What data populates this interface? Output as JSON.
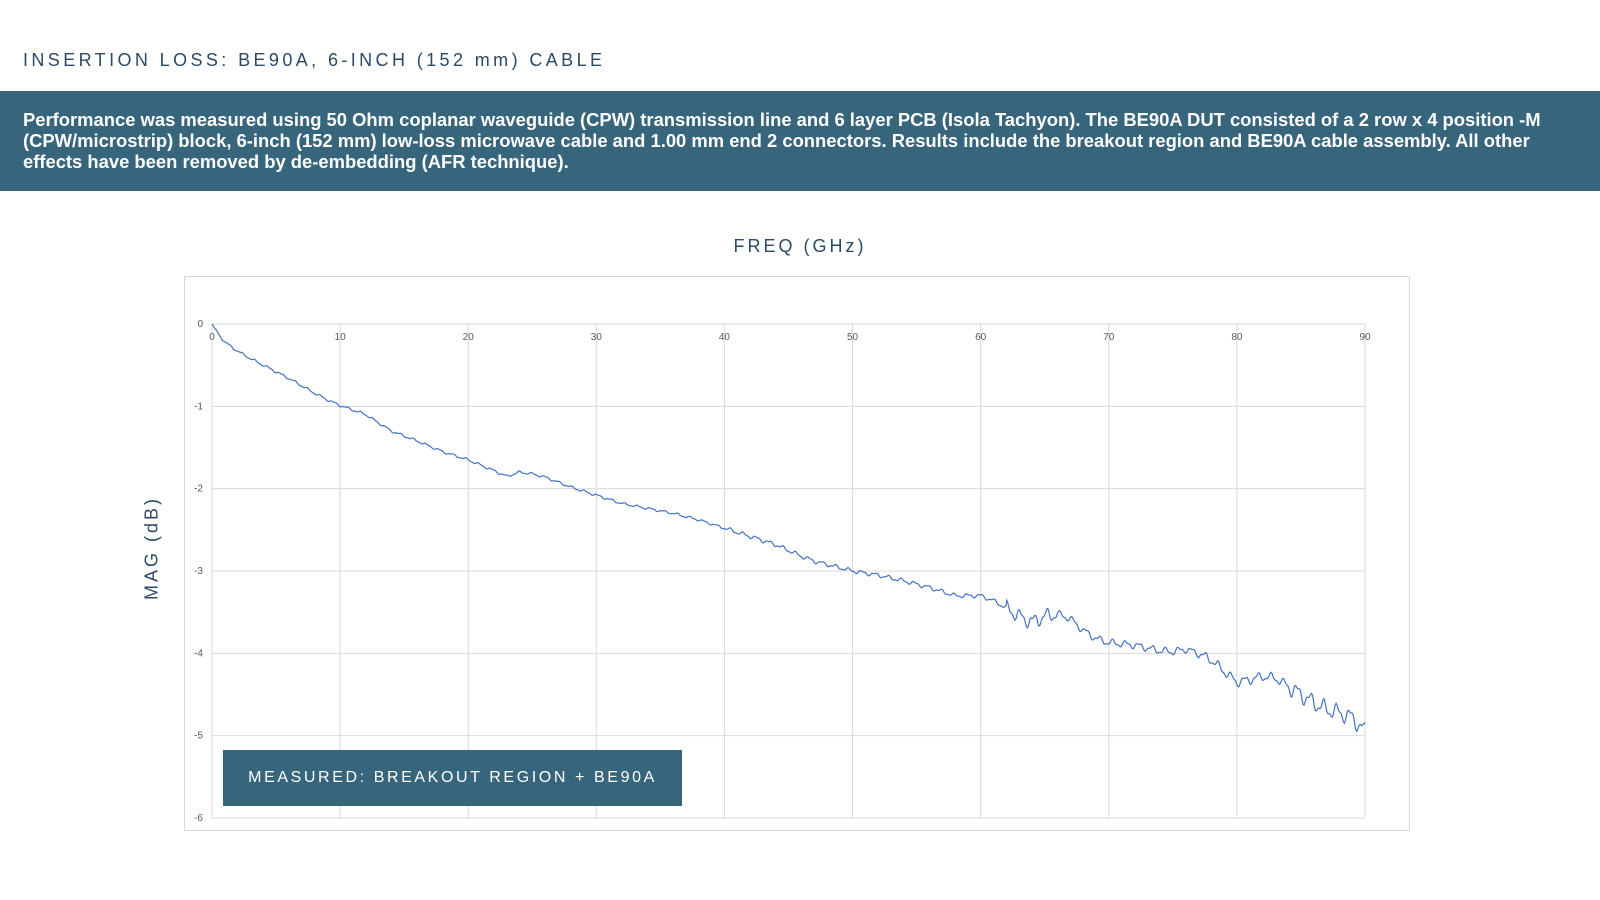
{
  "page": {
    "title": "INSERTION LOSS: BE90A, 6-INCH (152 mm) CABLE",
    "description": "Performance was measured using 50 Ohm coplanar waveguide (CPW) transmission line and 6 layer PCB (Isola Tachyon). The BE90A DUT consisted of a 2 row x 4 position -M (CPW/microstrip) block, 6-inch (152 mm) low-loss microwave cable and 1.00 mm end 2 connectors. Results include the breakout region and BE90A cable assembly. All other effects have been removed by de-embedding (AFR technique)."
  },
  "colors": {
    "band": "#36657c",
    "title_text": "#2b4a66",
    "series": "#4472c4",
    "grid": "#d9d9d9"
  },
  "chart_data": {
    "type": "line",
    "title": "",
    "xlabel": "FREQ (GHz)",
    "ylabel": "MAG (dB)",
    "xlim": [
      0,
      90
    ],
    "ylim": [
      -6,
      0
    ],
    "x_ticks": [
      "0",
      "10",
      "20",
      "30",
      "40",
      "50",
      "60",
      "70",
      "80",
      "90"
    ],
    "y_ticks": [
      "0",
      "-1",
      "-2",
      "-3",
      "-4",
      "-5",
      "-6"
    ],
    "x_axis_position": "top",
    "grid": true,
    "legend": "MEASURED: BREAKOUT REGION + BE90A",
    "series": [
      {
        "name": "MEASURED: BREAKOUT REGION + BE90A",
        "x": [
          0,
          0.5,
          1,
          2,
          3,
          4,
          5,
          6,
          7,
          8,
          9,
          10,
          12,
          14,
          16,
          18,
          20,
          22,
          23,
          24,
          25,
          26,
          27,
          28,
          30,
          32,
          34,
          36,
          38,
          40,
          42,
          44,
          46,
          47,
          48,
          50,
          52,
          54,
          56,
          58,
          60,
          61,
          62,
          63,
          64,
          65,
          66,
          67,
          68,
          69,
          70,
          72,
          74,
          75,
          76,
          77,
          78,
          79,
          80,
          81,
          82,
          83,
          84,
          85,
          86,
          87,
          88,
          89,
          90
        ],
        "y": [
          0,
          -0.12,
          -0.22,
          -0.33,
          -0.42,
          -0.5,
          -0.58,
          -0.66,
          -0.75,
          -0.84,
          -0.92,
          -0.99,
          -1.1,
          -1.3,
          -1.42,
          -1.55,
          -1.65,
          -1.78,
          -1.85,
          -1.8,
          -1.82,
          -1.86,
          -1.92,
          -1.98,
          -2.08,
          -2.18,
          -2.24,
          -2.3,
          -2.38,
          -2.48,
          -2.58,
          -2.68,
          -2.82,
          -2.88,
          -2.92,
          -3.0,
          -3.05,
          -3.12,
          -3.2,
          -3.3,
          -3.3,
          -3.36,
          -3.45,
          -3.55,
          -3.62,
          -3.55,
          -3.52,
          -3.58,
          -3.72,
          -3.82,
          -3.87,
          -3.9,
          -3.97,
          -3.98,
          -3.95,
          -4.0,
          -4.08,
          -4.22,
          -4.35,
          -4.32,
          -4.28,
          -4.3,
          -4.4,
          -4.5,
          -4.6,
          -4.68,
          -4.72,
          -4.78,
          -4.95
        ]
      }
    ]
  }
}
